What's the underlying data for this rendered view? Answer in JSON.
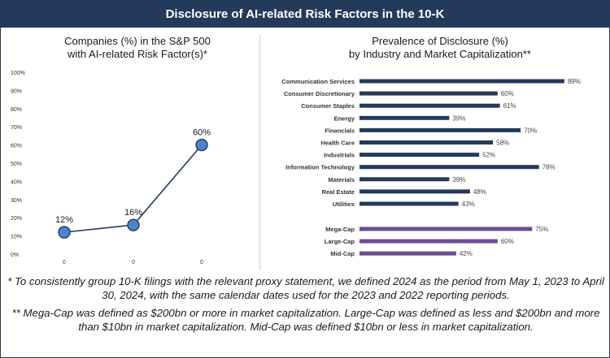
{
  "banner": {
    "title": "Disclosure of AI-related Risk Factors in the 10-K"
  },
  "left_chart": {
    "title_line1": "Companies (%) in the S&P 500",
    "title_line2": "with AI-related Risk Factor(s)*"
  },
  "right_chart": {
    "title_line1": "Prevalence of Disclosure (%)",
    "title_line2": "by Industry and Market Capitalization**"
  },
  "notes": {
    "note1": "* To consistently group 10-K filings with the relevant proxy statement, we defined 2024 as the period from May 1, 2023 to April 30, 2024, with the same calendar dates used for the 2023 and 2022 reporting periods.",
    "note2": "** Mega-Cap was defined as $200bn or more in market capitalization. Large-Cap was defined as less and $200bn and more than $10bn in market capitalization. Mid-Cap was defined $10bn or less in market capitalization."
  },
  "chart_data": [
    {
      "type": "line",
      "title": "Companies (%) in the S&P 500 with AI-related Risk Factor(s)*",
      "categories": [
        "0",
        "0",
        "0"
      ],
      "values": [
        12,
        16,
        60
      ],
      "data_labels": [
        "12%",
        "16%",
        "60%"
      ],
      "ylim": [
        0,
        100
      ],
      "y_ticks": [
        "0%",
        "10%",
        "20%",
        "30%",
        "40%",
        "50%",
        "60%",
        "70%",
        "80%",
        "90%",
        "100%"
      ],
      "grid": false,
      "color": "#243a5a",
      "marker_color": "#4a86d0"
    },
    {
      "type": "bar",
      "orientation": "horizontal",
      "title": "Prevalence of Disclosure (%) by Industry and Market Capitalization**",
      "groups": [
        {
          "color": "#243a5a",
          "categories": [
            "Communication Services",
            "Consumer Discretionary",
            "Consumer Staples",
            "Energy",
            "Financials",
            "Health Care",
            "Industrials",
            "Information Technology",
            "Materials",
            "Real Estate",
            "Utilities"
          ],
          "values": [
            89,
            60,
            61,
            39,
            70,
            58,
            52,
            78,
            39,
            48,
            43
          ],
          "data_labels": [
            "89%",
            "60%",
            "61%",
            "39%",
            "70%",
            "58%",
            "52%",
            "78%",
            "39%",
            "48%",
            "43%"
          ]
        },
        {
          "color": "#6b4c94",
          "categories": [
            "Mega-Cap",
            "Large-Cap",
            "Mid-Cap"
          ],
          "values": [
            75,
            60,
            42
          ],
          "data_labels": [
            "75%",
            "60%",
            "42%"
          ]
        }
      ],
      "xlim": [
        0,
        100
      ]
    }
  ]
}
